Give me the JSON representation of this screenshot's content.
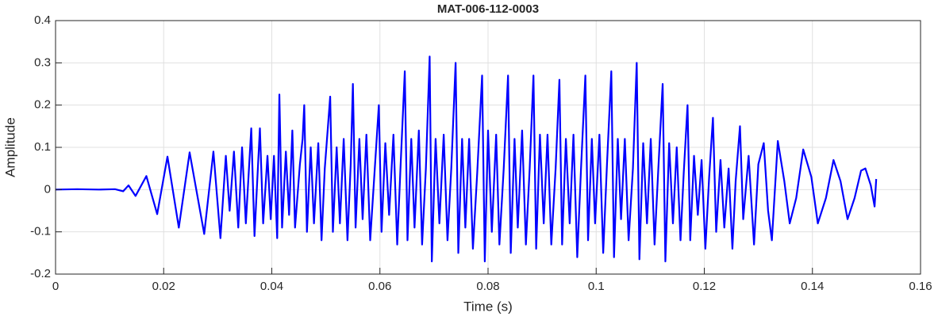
{
  "chart_data": {
    "type": "line",
    "title": "MAT-006-112-0003",
    "x_label": "Time (s)",
    "y_label": "Amplitude",
    "xlim": [
      0,
      0.16
    ],
    "xticks": [
      0,
      0.02,
      0.04,
      0.06,
      0.08,
      0.1,
      0.12,
      0.14,
      0.16
    ],
    "ylim": [
      -0.2,
      0.4
    ],
    "yticks": [
      -0.2,
      -0.1,
      0,
      0.1,
      0.2,
      0.3,
      0.4
    ],
    "grid": true,
    "series": [
      {
        "color": "#0000ff",
        "x": [
          0,
          0.004,
          0.008,
          0.011,
          0.0125,
          0.0135,
          0.0148,
          0.0168,
          0.0188,
          0.0207,
          0.0228,
          0.0248,
          0.0275,
          0.0292,
          0.0305,
          0.0315,
          0.0322,
          0.033,
          0.0338,
          0.0345,
          0.0352,
          0.0362,
          0.0368,
          0.0375,
          0.0378,
          0.0384,
          0.0392,
          0.0398,
          0.0404,
          0.041,
          0.0414,
          0.0419,
          0.0426,
          0.0432,
          0.0438,
          0.0443,
          0.0452,
          0.0457,
          0.046,
          0.0465,
          0.0472,
          0.0478,
          0.0486,
          0.0492,
          0.0498,
          0.0508,
          0.0513,
          0.052,
          0.0526,
          0.0533,
          0.054,
          0.0546,
          0.055,
          0.0555,
          0.0562,
          0.0568,
          0.0575,
          0.0582,
          0.059,
          0.0598,
          0.0603,
          0.061,
          0.0617,
          0.0625,
          0.0632,
          0.0638,
          0.0646,
          0.0651,
          0.0658,
          0.0664,
          0.0672,
          0.0678,
          0.0685,
          0.0692,
          0.0696,
          0.0703,
          0.071,
          0.0718,
          0.0725,
          0.0732,
          0.074,
          0.0745,
          0.0752,
          0.0758,
          0.0765,
          0.0772,
          0.078,
          0.0789,
          0.0794,
          0.08,
          0.0807,
          0.0815,
          0.0821,
          0.0829,
          0.0837,
          0.0842,
          0.0849,
          0.0855,
          0.0863,
          0.087,
          0.0877,
          0.0884,
          0.0889,
          0.0896,
          0.0903,
          0.091,
          0.0917,
          0.0925,
          0.0932,
          0.0937,
          0.0944,
          0.0951,
          0.0958,
          0.0965,
          0.0972,
          0.098,
          0.0985,
          0.0992,
          0.0998,
          0.1006,
          0.1013,
          0.102,
          0.1028,
          0.1033,
          0.104,
          0.1046,
          0.1053,
          0.106,
          0.1068,
          0.1075,
          0.108,
          0.1087,
          0.1094,
          0.1101,
          0.1108,
          0.1115,
          0.1123,
          0.1128,
          0.1135,
          0.1142,
          0.1149,
          0.1156,
          0.1162,
          0.1169,
          0.1174,
          0.1181,
          0.1188,
          0.1195,
          0.1202,
          0.1209,
          0.1216,
          0.1222,
          0.123,
          0.1237,
          0.1245,
          0.1252,
          0.1258,
          0.1266,
          0.1272,
          0.1282,
          0.1292,
          0.13,
          0.131,
          0.1318,
          0.1325,
          0.1336,
          0.1348,
          0.1358,
          0.137,
          0.1383,
          0.1398,
          0.141,
          0.1425,
          0.1439,
          0.1452,
          0.1465,
          0.1478,
          0.149,
          0.1498,
          0.1508,
          0.1515,
          0.1518
        ],
        "values": [
          0,
          0.001,
          0,
          0.001,
          -0.004,
          0.01,
          -0.015,
          0.032,
          -0.058,
          0.078,
          -0.09,
          0.088,
          -0.105,
          0.09,
          -0.115,
          0.08,
          -0.05,
          0.09,
          -0.09,
          0.1,
          -0.08,
          0.145,
          -0.11,
          0.07,
          0.145,
          -0.08,
          0.08,
          -0.07,
          0.08,
          -0.115,
          0.225,
          -0.09,
          0.09,
          -0.06,
          0.14,
          -0.09,
          0.06,
          0.12,
          0.2,
          -0.1,
          0.1,
          -0.08,
          0.11,
          -0.12,
          0.05,
          0.22,
          -0.1,
          0.1,
          -0.08,
          0.12,
          -0.12,
          0.06,
          0.25,
          -0.09,
          0.12,
          -0.07,
          0.13,
          -0.12,
          0.04,
          0.2,
          -0.1,
          0.11,
          -0.06,
          0.13,
          -0.13,
          0.05,
          0.28,
          -0.12,
          0.12,
          -0.09,
          0.14,
          -0.13,
          0.05,
          0.315,
          -0.17,
          0.12,
          -0.08,
          0.13,
          -0.12,
          0.05,
          0.3,
          -0.15,
          0.12,
          -0.09,
          0.12,
          -0.14,
          0.04,
          0.27,
          -0.17,
          0.14,
          -0.1,
          0.13,
          -0.13,
          0.05,
          0.27,
          -0.15,
          0.12,
          -0.09,
          0.14,
          -0.13,
          0.05,
          0.27,
          -0.14,
          0.13,
          -0.08,
          0.13,
          -0.13,
          0.05,
          0.26,
          -0.13,
          0.12,
          -0.08,
          0.13,
          -0.16,
          0.05,
          0.27,
          -0.12,
          0.12,
          -0.08,
          0.13,
          -0.15,
          0.06,
          0.28,
          -0.16,
          0.12,
          -0.07,
          0.12,
          -0.12,
          0.05,
          0.3,
          -0.165,
          0.11,
          -0.08,
          0.12,
          -0.13,
          0.05,
          0.25,
          -0.17,
          0.11,
          -0.08,
          0.1,
          -0.12,
          0.04,
          0.2,
          -0.12,
          0.08,
          -0.06,
          0.07,
          -0.14,
          0.03,
          0.17,
          -0.1,
          0.07,
          -0.09,
          0.05,
          -0.14,
          0.02,
          0.15,
          -0.07,
          0.08,
          -0.13,
          0.06,
          0.11,
          -0.05,
          -0.12,
          0.115,
          0.02,
          -0.08,
          -0.02,
          0.095,
          0.03,
          -0.08,
          -0.02,
          0.07,
          0.02,
          -0.07,
          -0.02,
          0.045,
          0.05,
          0.01,
          -0.04,
          0.025
        ]
      }
    ]
  }
}
